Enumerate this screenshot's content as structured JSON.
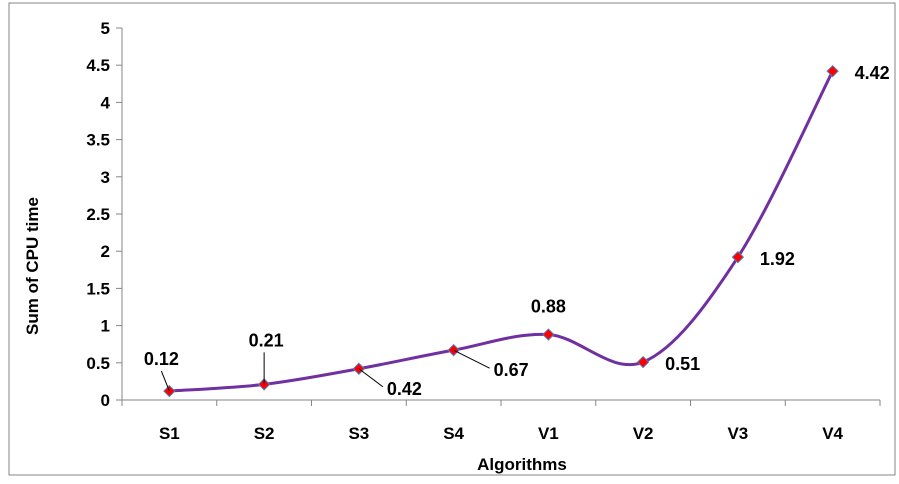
{
  "chart_data": {
    "type": "line",
    "smooth": true,
    "title": "",
    "xlabel": "Algorithms",
    "ylabel": "Sum of CPU time",
    "categories": [
      "S1",
      "S2",
      "S3",
      "S4",
      "V1",
      "V2",
      "V3",
      "V4"
    ],
    "series": [
      {
        "values": [
          0.12,
          0.21,
          0.42,
          0.67,
          0.88,
          0.51,
          1.92,
          4.42
        ],
        "data_labels": [
          "0.12",
          "0.21",
          "0.42",
          "0.67",
          "0.88",
          "0.51",
          "1.92",
          "4.42"
        ]
      }
    ],
    "ylim": [
      0,
      5
    ],
    "yticks": [
      "0",
      "0.5",
      "1",
      "1.5",
      "2",
      "2.5",
      "3",
      "3.5",
      "4",
      "4.5",
      "5"
    ],
    "grid": false,
    "legend": "none",
    "colors": {
      "line": "#7030A0",
      "marker_fill": "#FF0000",
      "marker_stroke": "#4F81BD",
      "axis": "#868686",
      "frame": "#868686"
    }
  }
}
